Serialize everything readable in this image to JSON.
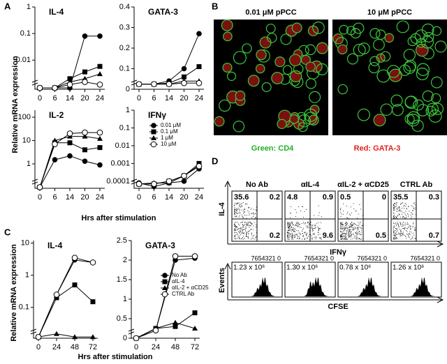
{
  "panel_letters": [
    "A",
    "B",
    "C",
    "D"
  ],
  "panel_a": {
    "ylabel": "Relative mRNA expression",
    "xlabel": "Hrs after stimulation"
  },
  "panel_c": {
    "ylabel": "Relative mRNA expression",
    "xlabel": "Hrs after stimulation"
  },
  "chart_data": [
    {
      "type": "line",
      "title": "IL-4",
      "categories": [
        "0",
        "6",
        "14",
        "20",
        "24"
      ],
      "log": true,
      "ylim": [
        0.0008,
        1
      ],
      "yticks": [
        0.01,
        0.1,
        1
      ],
      "series": [
        {
          "color": "#000000",
          "marker": "circle",
          "values": [
            0.0009,
            0.0009,
            0.0009,
            0.08,
            0.08
          ]
        },
        {
          "color": "#000000",
          "marker": "square",
          "values": [
            0.0009,
            0.0009,
            0.002,
            0.0036,
            0.0058
          ]
        },
        {
          "color": "#000000",
          "marker": "triangle",
          "values": [
            0.0009,
            0.0009,
            0.0015,
            0.002,
            0.003
          ]
        },
        {
          "color": "#000000",
          "marker": "open-circle",
          "values": [
            0.0009,
            0.0009,
            0.0012,
            0.0015,
            0.0012
          ]
        }
      ]
    },
    {
      "type": "line",
      "title": "GATA-3",
      "categories": [
        "0",
        "6",
        "14",
        "20",
        "24"
      ],
      "log": false,
      "ylim": [
        0,
        0.4
      ],
      "yticks": [
        0,
        0.1,
        0.2,
        0.3,
        0.4
      ],
      "series": [
        {
          "color": "#000000",
          "marker": "circle",
          "values": [
            0.025,
            0.025,
            0.04,
            0.1,
            0.27
          ]
        },
        {
          "color": "#000000",
          "marker": "square",
          "values": [
            0.025,
            0.025,
            0.03,
            0.06,
            0.11
          ]
        },
        {
          "color": "#000000",
          "marker": "triangle",
          "values": [
            0.025,
            0.025,
            0.025,
            0.04,
            0.04
          ]
        },
        {
          "color": "#000000",
          "marker": "open-circle",
          "values": [
            0.025,
            0.025,
            0.025,
            0.03,
            0.03
          ]
        }
      ]
    },
    {
      "type": "line",
      "title": "IL-2",
      "categories": [
        "0",
        "6",
        "14",
        "20",
        "24"
      ],
      "log": true,
      "ylim": [
        0.09,
        200
      ],
      "yticks": [
        1,
        10,
        100
      ],
      "series": [
        {
          "color": "#000000",
          "marker": "circle",
          "values": [
            0.1,
            1.5,
            2.2,
            1.3,
            0.9
          ]
        },
        {
          "color": "#000000",
          "marker": "square",
          "values": [
            0.1,
            8,
            8,
            4,
            5
          ]
        },
        {
          "color": "#000000",
          "marker": "triangle",
          "values": [
            0.1,
            10,
            15,
            15,
            12
          ]
        },
        {
          "color": "#000000",
          "marker": "open-circle",
          "values": [
            0.1,
            7,
            20,
            22,
            22
          ]
        }
      ]
    },
    {
      "type": "line",
      "title": "IFNγ",
      "categories": [
        "0",
        "6",
        "14",
        "20",
        "24"
      ],
      "log": true,
      "ylim": [
        4e-05,
        1
      ],
      "yticks": [
        0.0001,
        0.001,
        0.01,
        0.1,
        1
      ],
      "legend": "upper right",
      "series": [
        {
          "name": "0.01 μM",
          "color": "#000000",
          "marker": "circle",
          "values": [
            8e-05,
            5e-05,
            8e-05,
            0.0001,
            0.0005
          ]
        },
        {
          "name": "0.1 μM",
          "color": "#000000",
          "marker": "square",
          "values": [
            7e-05,
            7e-05,
            0.0001,
            0.0002,
            0.001
          ]
        },
        {
          "name": "1 μM",
          "color": "#000000",
          "marker": "triangle",
          "values": [
            7e-05,
            8e-05,
            8e-05,
            0.0002,
            0.0008
          ]
        },
        {
          "name": "10 μM",
          "color": "#000000",
          "marker": "open-circle",
          "values": [
            7e-05,
            7e-05,
            0.0001,
            0.0002,
            0.0007
          ]
        }
      ]
    },
    {
      "type": "line",
      "title": "IL-4",
      "categories": [
        "0",
        "24",
        "48",
        "72"
      ],
      "log": true,
      "ylim": [
        0.011,
        12
      ],
      "yticks": [
        0.1,
        1,
        10
      ],
      "series": [
        {
          "color": "#000000",
          "marker": "circle",
          "values": [
            0.012,
            0.25,
            3,
            2.5
          ]
        },
        {
          "color": "#000000",
          "marker": "square",
          "values": [
            0.012,
            0.2,
            0.5,
            0.15
          ]
        },
        {
          "color": "#000000",
          "marker": "triangle",
          "values": [
            0.012,
            0.015,
            0.012,
            0.012
          ]
        },
        {
          "color": "#000000",
          "marker": "open-circle",
          "values": [
            0.012,
            0.25,
            3.5,
            2.5
          ]
        }
      ]
    },
    {
      "type": "line",
      "title": "GATA-3",
      "categories": [
        "0",
        "24",
        "48",
        "72"
      ],
      "log": false,
      "ylim": [
        0,
        2.5
      ],
      "yticks": [
        0,
        0.5,
        1,
        1.5,
        2,
        2.5
      ],
      "legend": "right",
      "series": [
        {
          "name": "No Ab",
          "color": "#000000",
          "marker": "circle",
          "values": [
            0,
            0.2,
            2,
            2.05
          ]
        },
        {
          "name": "αIL-4",
          "color": "#000000",
          "marker": "square",
          "values": [
            0,
            0.25,
            0.3,
            0.65
          ]
        },
        {
          "name": "αIL-2 + αCD25",
          "color": "#000000",
          "marker": "triangle",
          "values": [
            0,
            0.25,
            0.4,
            0.25
          ]
        },
        {
          "name": "CTRL Ab",
          "color": "#000000",
          "marker": "open-circle",
          "values": [
            0,
            0.2,
            2.1,
            2.1
          ]
        }
      ]
    }
  ],
  "panel_b": {
    "titles": [
      "0.01 μM pPCC",
      "10 μM pPCC"
    ],
    "caption_green": "Green: CD4",
    "caption_red": "Red: GATA-3"
  },
  "panel_d": {
    "y_label_top": "IL-4",
    "x_label_top": "IFNγ",
    "y_label_bottom": "Events",
    "x_label_bottom": "CFSE",
    "columns": [
      {
        "title": "No Ab",
        "ul": "35.6",
        "ur": "0.2",
        "lr": "0.2",
        "generations": "7654321 0",
        "count": "1.23 x 10⁶"
      },
      {
        "title": "αIL-4",
        "ul": "4.8",
        "ur": "0.9",
        "lr": "9.6",
        "generations": "7654321 0",
        "count": "1.30 x 10⁶"
      },
      {
        "title": "αIL-2 + αCD25",
        "ul": "0.5",
        "ur": "0",
        "lr": "0.5",
        "generations": "7654321 0",
        "count": "0.78 x 10⁶"
      },
      {
        "title": "CTRL Ab",
        "ul": "35.5",
        "ur": "0.3",
        "lr": "0.7",
        "generations": "7654321 0",
        "count": "1.26 x 10⁶"
      }
    ]
  }
}
